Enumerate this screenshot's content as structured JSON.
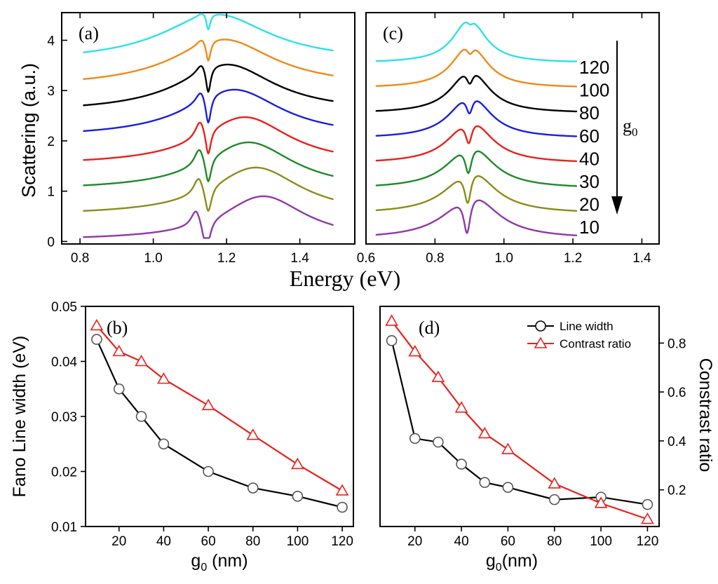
{
  "figure": {
    "x_label_top": "Energy (eV)",
    "y_label_top": "Scattering (a.u.)"
  },
  "colors": [
    "#8e3aa5",
    "#8c8c1a",
    "#1f8a2a",
    "#e8211c",
    "#1b1ee0",
    "#000000",
    "#ee8a1a",
    "#2fe0e8"
  ],
  "panel_a": {
    "label": "(a)",
    "xlim": [
      0.75,
      1.55
    ],
    "ylim": [
      -0.05,
      4.55
    ],
    "xticks": [
      "0.8",
      "1.0",
      "1.2",
      "1.4"
    ],
    "xtick_values": [
      0.8,
      1.0,
      1.2,
      1.4
    ],
    "yticks": [
      "0",
      "1",
      "2",
      "3",
      "4"
    ],
    "ytick_values": [
      0,
      1,
      2,
      3,
      4
    ],
    "x_range": [
      0.81,
      1.49
    ],
    "curves": [
      {
        "offset": 0.0,
        "bg_amp": 0.88,
        "bg_center": 1.3,
        "bg_width": 0.14,
        "dip_center": 1.145,
        "peak_shift": 0.028,
        "peak_amp": 0.35,
        "dip_amp": 0.65,
        "dip_width": 0.012,
        "end_level": 0.82
      },
      {
        "offset": 0.5,
        "bg_amp": 0.95,
        "bg_center": 1.28,
        "bg_width": 0.15,
        "dip_center": 1.15,
        "peak_shift": 0.026,
        "peak_amp": 0.35,
        "dip_amp": 0.55,
        "dip_width": 0.011,
        "end_level": 0.85
      },
      {
        "offset": 1.0,
        "bg_amp": 0.95,
        "bg_center": 1.26,
        "bg_width": 0.15,
        "dip_center": 1.15,
        "peak_shift": 0.024,
        "peak_amp": 0.35,
        "dip_amp": 0.55,
        "dip_width": 0.01,
        "end_level": 0.72
      },
      {
        "offset": 1.5,
        "bg_amp": 0.95,
        "bg_center": 1.25,
        "bg_width": 0.15,
        "dip_center": 1.15,
        "peak_shift": 0.022,
        "peak_amp": 0.35,
        "dip_amp": 0.55,
        "dip_width": 0.009,
        "end_level": 0.7
      },
      {
        "offset": 2.05,
        "bg_amp": 0.95,
        "bg_center": 1.22,
        "bg_width": 0.16,
        "dip_center": 1.15,
        "peak_shift": 0.02,
        "peak_amp": 0.25,
        "dip_amp": 0.6,
        "dip_width": 0.009,
        "end_level": 0.42
      },
      {
        "offset": 2.55,
        "bg_amp": 0.95,
        "bg_center": 1.2,
        "bg_width": 0.16,
        "dip_center": 1.15,
        "peak_shift": 0.018,
        "peak_amp": 0.2,
        "dip_amp": 0.55,
        "dip_width": 0.008,
        "end_level": 0.4
      },
      {
        "offset": 3.05,
        "bg_amp": 0.95,
        "bg_center": 1.19,
        "bg_width": 0.17,
        "dip_center": 1.15,
        "peak_shift": 0.016,
        "peak_amp": 0.15,
        "dip_amp": 0.45,
        "dip_width": 0.008,
        "end_level": 0.45
      },
      {
        "offset": 3.55,
        "bg_amp": 0.95,
        "bg_center": 1.17,
        "bg_width": 0.18,
        "dip_center": 1.15,
        "peak_shift": 0.014,
        "peak_amp": 0.1,
        "dip_amp": 0.35,
        "dip_width": 0.007,
        "end_level": 0.45
      }
    ]
  },
  "panel_c": {
    "label": "(c)",
    "xlim": [
      0.6,
      1.45
    ],
    "ylim": [
      -0.05,
      4.55
    ],
    "xticks": [
      "0.6",
      "0.8",
      "1.0",
      "1.2",
      "1.4"
    ],
    "xtick_values": [
      0.6,
      0.8,
      1.0,
      1.2,
      1.4
    ],
    "x_range": [
      0.63,
      1.21
    ],
    "series_labels": [
      "120",
      "100",
      "80",
      "60",
      "40",
      "30",
      "20",
      "10"
    ],
    "g_label": "g",
    "g_sub": "0",
    "curves": [
      {
        "offset": 0.0,
        "peak1": 0.862,
        "peak2": 0.95,
        "dip": 0.893,
        "amp": 0.9,
        "w": 0.045,
        "dip_depth": 0.85,
        "dip_w": 0.012
      },
      {
        "offset": 0.5,
        "peak1": 0.868,
        "peak2": 0.94,
        "dip": 0.895,
        "amp": 0.9,
        "w": 0.045,
        "dip_depth": 0.75,
        "dip_w": 0.012
      },
      {
        "offset": 1.0,
        "peak1": 0.872,
        "peak2": 0.935,
        "dip": 0.897,
        "amp": 0.9,
        "w": 0.045,
        "dip_depth": 0.65,
        "dip_w": 0.012
      },
      {
        "offset": 1.5,
        "peak1": 0.876,
        "peak2": 0.93,
        "dip": 0.898,
        "amp": 0.9,
        "w": 0.045,
        "dip_depth": 0.55,
        "dip_w": 0.012
      },
      {
        "offset": 2.0,
        "peak1": 0.88,
        "peak2": 0.925,
        "dip": 0.9,
        "amp": 0.9,
        "w": 0.045,
        "dip_depth": 0.45,
        "dip_w": 0.012
      },
      {
        "offset": 2.5,
        "peak1": 0.884,
        "peak2": 0.92,
        "dip": 0.901,
        "amp": 0.9,
        "w": 0.045,
        "dip_depth": 0.35,
        "dip_w": 0.012
      },
      {
        "offset": 3.0,
        "peak1": 0.887,
        "peak2": 0.915,
        "dip": 0.902,
        "amp": 0.9,
        "w": 0.045,
        "dip_depth": 0.25,
        "dip_w": 0.012
      },
      {
        "offset": 3.5,
        "peak1": 0.89,
        "peak2": 0.91,
        "dip": 0.902,
        "amp": 0.9,
        "w": 0.045,
        "dip_depth": 0.15,
        "dip_w": 0.012
      }
    ]
  },
  "chart_data": [
    {
      "type": "line",
      "panel": "(b)",
      "xlabel": "g0 (nm)",
      "ylabel": "Fano Line width (eV)",
      "xlim": [
        5,
        125
      ],
      "ylim": [
        0.01,
        0.05
      ],
      "xticks": [
        20,
        40,
        60,
        80,
        100,
        120
      ],
      "yticks": [
        0.01,
        0.02,
        0.03,
        0.04,
        0.05
      ],
      "ytick_labels": [
        "0.01",
        "0.02",
        "0.03",
        "0.04",
        "0.05"
      ],
      "series": [
        {
          "name": "black circles",
          "x": [
            10,
            20,
            30,
            40,
            60,
            80,
            100,
            120
          ],
          "values": [
            0.044,
            0.035,
            0.03,
            0.025,
            0.02,
            0.017,
            0.0155,
            0.0135
          ]
        },
        {
          "name": "red triangles",
          "x": [
            10,
            20,
            30,
            40,
            60,
            80,
            100,
            120
          ],
          "values": [
            0.0465,
            0.0418,
            0.04,
            0.0368,
            0.032,
            0.0266,
            0.0213,
            0.0165
          ]
        }
      ]
    },
    {
      "type": "line",
      "panel": "(d)",
      "xlabel": "g0(nm)",
      "ylabel_right": "Constrast ratio",
      "xlim": [
        5,
        125
      ],
      "ylim": [
        0.05,
        0.95
      ],
      "xticks": [
        20,
        40,
        60,
        80,
        100,
        120
      ],
      "yticks": [
        0.2,
        0.4,
        0.6,
        0.8
      ],
      "ytick_labels": [
        "0.2",
        "0.4",
        "0.6",
        "0.8"
      ],
      "legend": [
        "Line width",
        "Contrast ratio"
      ],
      "series": [
        {
          "name": "Line width",
          "x": [
            10,
            20,
            30,
            40,
            50,
            60,
            80,
            100,
            120
          ],
          "values": [
            0.81,
            0.41,
            0.395,
            0.305,
            0.23,
            0.21,
            0.16,
            0.17,
            0.14
          ]
        },
        {
          "name": "Contrast ratio",
          "x": [
            10,
            20,
            30,
            40,
            50,
            60,
            80,
            100,
            120
          ],
          "values": [
            0.89,
            0.765,
            0.66,
            0.535,
            0.43,
            0.365,
            0.225,
            0.145,
            0.08
          ]
        }
      ]
    }
  ]
}
